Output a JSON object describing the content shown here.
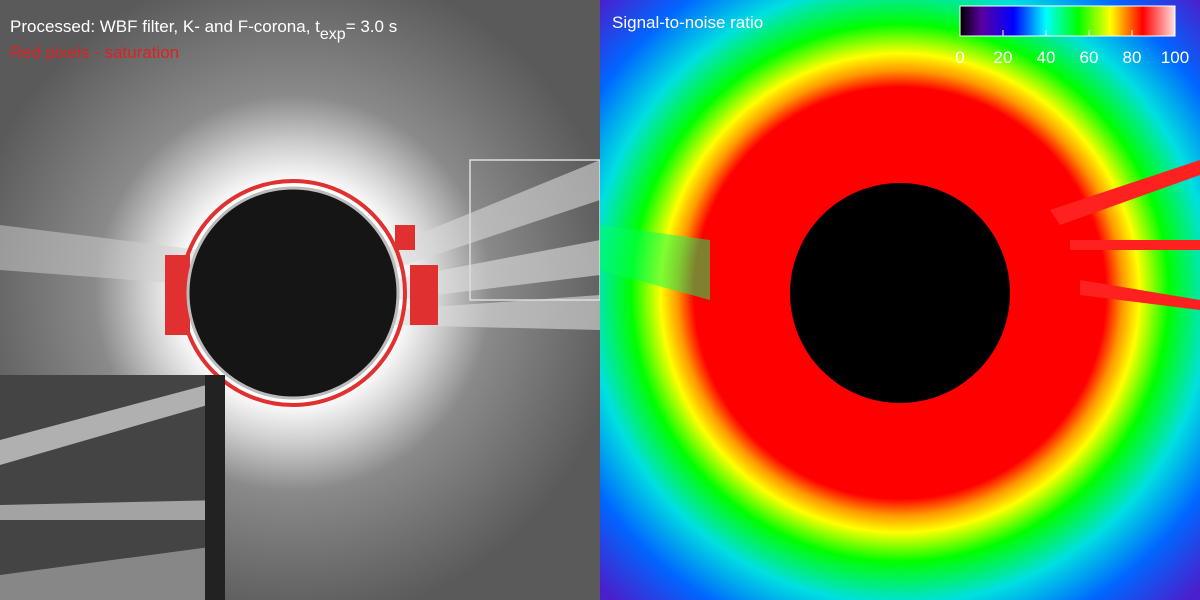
{
  "left_panel": {
    "title_prefix": "Processed: WBF filter, K- and F-corona, t",
    "title_subscript": "exp",
    "title_suffix": "= 3.0 s",
    "note": "Red pixels - saturation"
  },
  "right_panel": {
    "title": "Signal-to-noise ratio",
    "colorbar": {
      "ticks": [
        0,
        20,
        40,
        60,
        80,
        100
      ]
    }
  }
}
